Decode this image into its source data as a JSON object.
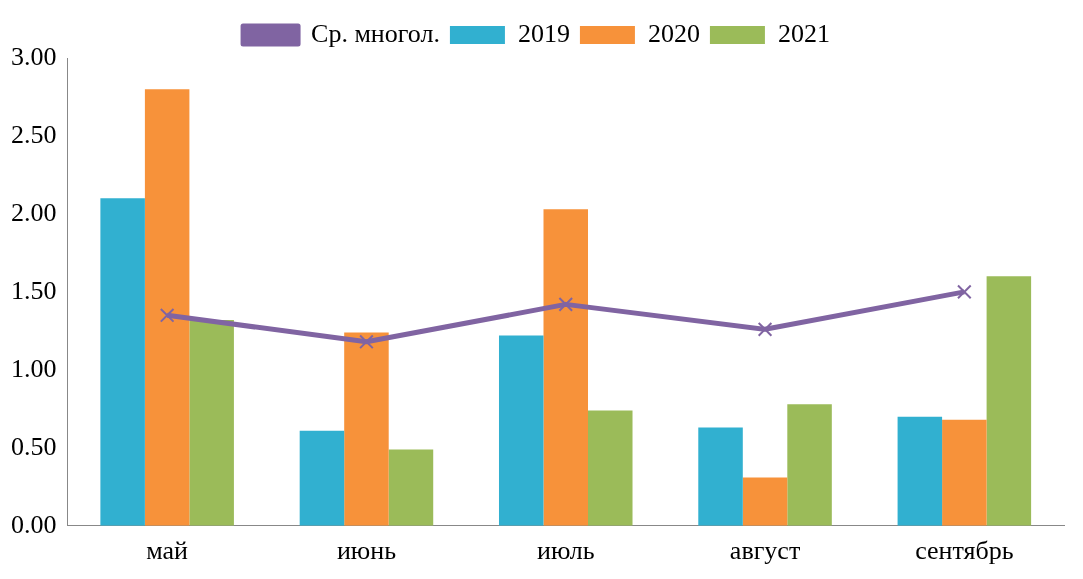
{
  "chart_data": {
    "type": "bar",
    "categories": [
      "май",
      "июнь",
      "июль",
      "август",
      "сентябрь"
    ],
    "series": [
      {
        "name": "2019",
        "color": "#31b0d0",
        "values": [
          2.1,
          0.61,
          1.22,
          0.63,
          0.7
        ]
      },
      {
        "name": "2020",
        "color": "#f7923a",
        "values": [
          2.8,
          1.24,
          2.03,
          0.31,
          0.68
        ]
      },
      {
        "name": "2021",
        "color": "#9bbb59",
        "values": [
          1.32,
          0.49,
          0.74,
          0.78,
          1.6
        ]
      },
      {
        "name": "Ср. многол.",
        "type": "line",
        "color": "#8064a2",
        "values": [
          1.35,
          1.18,
          1.42,
          1.26,
          1.5
        ],
        "marker": "cross",
        "line_style": "solid"
      }
    ],
    "ylim": [
      0,
      3
    ],
    "yticks": [
      {
        "value": 0,
        "label": "0.00"
      },
      {
        "value": 0.5,
        "label": "0.50"
      },
      {
        "value": 1,
        "label": "1.00"
      },
      {
        "value": 1.5,
        "label": "1.50"
      },
      {
        "value": 2,
        "label": "2.00"
      },
      {
        "value": 2.5,
        "label": "2.50"
      },
      {
        "value": 3,
        "label": "3.00"
      }
    ],
    "grid": false,
    "legend": "top"
  }
}
